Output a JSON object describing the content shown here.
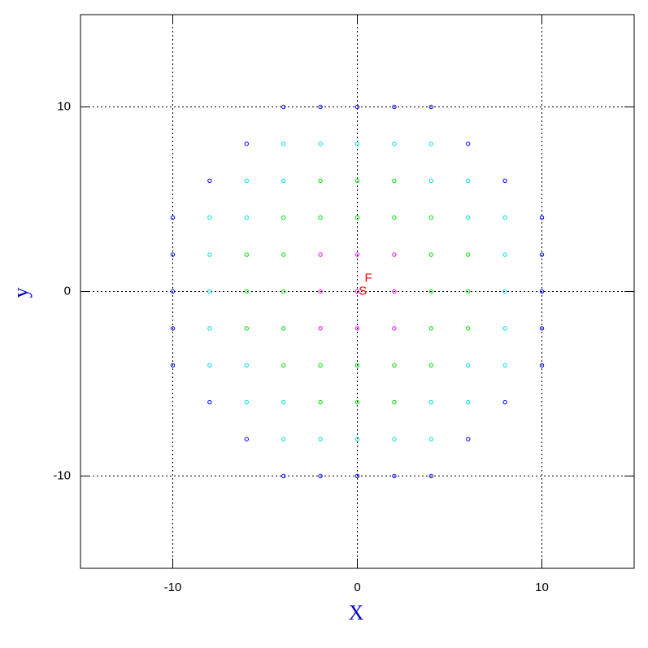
{
  "chart_data": {
    "type": "scatter",
    "x_label": "X",
    "y_label": "y",
    "label_color": "#0000cc",
    "xlim": [
      -15,
      15
    ],
    "ylim": [
      -15,
      15
    ],
    "xticks": [
      -10,
      0,
      10
    ],
    "yticks": [
      -10,
      0,
      10
    ],
    "grid": true,
    "series": [
      {
        "color": "#ff00ff",
        "x": [
          0,
          2,
          -2,
          0,
          0,
          2,
          2,
          -2,
          -2
        ],
        "y": [
          0,
          0,
          0,
          2,
          -2,
          2,
          -2,
          2,
          -2
        ]
      },
      {
        "color": "#00dd00",
        "x": [
          4,
          -4,
          0,
          0,
          4,
          4,
          -4,
          -4,
          2,
          2,
          -2,
          -2,
          4,
          4,
          -4,
          -4,
          6,
          -6,
          0,
          0,
          6,
          6,
          -6,
          -6,
          2,
          2,
          -2,
          -2
        ],
        "y": [
          0,
          0,
          4,
          -4,
          2,
          -2,
          2,
          -2,
          4,
          -4,
          4,
          -4,
          4,
          -4,
          4,
          -4,
          0,
          0,
          6,
          -6,
          2,
          -2,
          2,
          -2,
          6,
          -6,
          6,
          -6
        ]
      },
      {
        "color": "#00dddd",
        "x": [
          6,
          6,
          -6,
          -6,
          4,
          4,
          -4,
          -4,
          6,
          6,
          -6,
          -6,
          8,
          -8,
          0,
          0,
          8,
          8,
          -8,
          -8,
          2,
          2,
          -2,
          -2,
          8,
          8,
          -8,
          -8,
          4,
          4,
          -4,
          -4
        ],
        "y": [
          4,
          -4,
          4,
          -4,
          6,
          -6,
          6,
          -6,
          6,
          -6,
          6,
          -6,
          0,
          0,
          8,
          -8,
          2,
          -2,
          2,
          -2,
          8,
          -8,
          8,
          -8,
          4,
          -4,
          4,
          -4,
          8,
          -8,
          8,
          -8
        ]
      },
      {
        "color": "#0000ff",
        "x": [
          10,
          -10,
          0,
          0,
          10,
          10,
          -10,
          -10,
          2,
          2,
          -2,
          -2,
          10,
          10,
          -10,
          -10,
          4,
          4,
          -4,
          -4,
          8,
          8,
          -8,
          -8,
          6,
          6,
          -6,
          -6
        ],
        "y": [
          0,
          0,
          10,
          -10,
          2,
          -2,
          2,
          -2,
          10,
          -10,
          10,
          -10,
          4,
          -4,
          4,
          -4,
          10,
          -10,
          10,
          -10,
          6,
          -6,
          6,
          -6,
          8,
          -8,
          8,
          -8
        ]
      }
    ],
    "annotations": [
      {
        "text": "F",
        "x": 0.6,
        "y": 0.7,
        "color": "#ff0000"
      },
      {
        "text": "S",
        "x": 0.3,
        "y": 0.0,
        "color": "#ff0000"
      }
    ]
  }
}
